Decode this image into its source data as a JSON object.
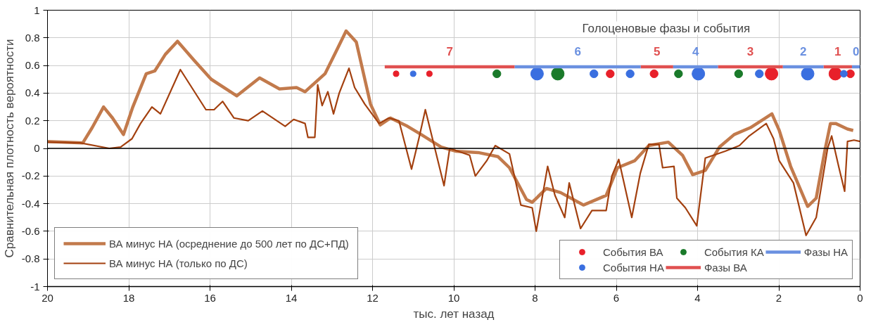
{
  "chart_data": {
    "type": "line",
    "ylabel": "Сравнительная плотность вероятности",
    "xlabel": "тыс. лет назад",
    "xlim": [
      20,
      0
    ],
    "xticks": [
      20,
      18,
      16,
      14,
      12,
      10,
      8,
      6,
      4,
      2,
      0
    ],
    "ylim": [
      -1,
      1
    ],
    "yticks": [
      -1,
      -0.8,
      -0.6,
      -0.4,
      -0.2,
      0,
      0.2,
      0.4,
      0.6,
      0.8,
      1
    ],
    "grid": true,
    "legend": "bottom",
    "annotations": [
      "Голоценовые фазы и события",
      "7",
      "6",
      "5",
      "4",
      "3",
      "2",
      "1",
      "0"
    ],
    "series": [
      {
        "name": "ВА минус НА (осреднение до 500 лет по ДС+ПД)",
        "color": "#c27a4c",
        "x": [
          20,
          19.13,
          18.9,
          18.62,
          18.4,
          18.13,
          17.9,
          17.57,
          17.36,
          17.1,
          16.8,
          16.4,
          15.97,
          15.34,
          14.78,
          14.29,
          13.87,
          13.66,
          13.17,
          12.9,
          12.65,
          12.4,
          12.05,
          11.81,
          11.56,
          11.14,
          10.8,
          10.31,
          9.96,
          9.4,
          8.91,
          8.63,
          8.21,
          8.07,
          7.72,
          7.37,
          6.81,
          6.25,
          5.97,
          5.55,
          5.2,
          4.72,
          4.37,
          4.12,
          3.81,
          3.46,
          3.1,
          2.7,
          2.17,
          1.99,
          1.71,
          1.29,
          1.08,
          0.87,
          0.73,
          0.6,
          0.31,
          0.17
        ],
        "values": [
          0.05,
          0.04,
          0.15,
          0.3,
          0.22,
          0.1,
          0.3,
          0.54,
          0.56,
          0.68,
          0.775,
          0.64,
          0.5,
          0.38,
          0.51,
          0.43,
          0.44,
          0.41,
          0.54,
          0.7,
          0.85,
          0.77,
          0.32,
          0.17,
          0.22,
          0.16,
          0.1,
          0.01,
          -0.02,
          -0.03,
          -0.06,
          -0.14,
          -0.37,
          -0.39,
          -0.29,
          -0.32,
          -0.41,
          -0.34,
          -0.14,
          -0.09,
          0.02,
          0.045,
          -0.05,
          -0.19,
          -0.16,
          0.01,
          0.1,
          0.15,
          0.25,
          0.13,
          -0.13,
          -0.42,
          -0.36,
          -0.02,
          0.18,
          0.18,
          0.14,
          0.13
        ]
      },
      {
        "name": "ВА минус НА (только по ДС)",
        "color": "#a3400f",
        "x": [
          20,
          19.2,
          18.48,
          18.2,
          17.92,
          17.71,
          17.43,
          17.22,
          16.73,
          16.1,
          15.9,
          15.69,
          15.41,
          15.06,
          14.71,
          14.15,
          13.94,
          13.66,
          13.59,
          13.42,
          13.35,
          13.24,
          13.1,
          12.96,
          12.82,
          12.58,
          12.44,
          12.19,
          11.84,
          11.6,
          11.35,
          11.04,
          10.86,
          10.7,
          10.24,
          10.1,
          9.61,
          9.47,
          9.19,
          8.98,
          8.63,
          8.35,
          8.07,
          7.97,
          7.69,
          7.51,
          7.27,
          7.16,
          6.88,
          6.6,
          6.25,
          6.11,
          5.94,
          5.62,
          5.41,
          5.2,
          4.95,
          4.86,
          4.58,
          4.51,
          4.3,
          4.02,
          3.81,
          3.32,
          2.97,
          2.73,
          2.31,
          2.13,
          1.99,
          1.64,
          1.33,
          1.08,
          0.8,
          0.7,
          0.52,
          0.38,
          0.31,
          0.15,
          0
        ],
        "values": [
          0.045,
          0.04,
          0.0,
          0.01,
          0.07,
          0.18,
          0.3,
          0.25,
          0.57,
          0.28,
          0.28,
          0.34,
          0.22,
          0.2,
          0.27,
          0.16,
          0.21,
          0.18,
          0.08,
          0.08,
          0.46,
          0.31,
          0.41,
          0.25,
          0.4,
          0.58,
          0.44,
          0.32,
          0.18,
          0.22,
          0.2,
          -0.15,
          0.07,
          0.28,
          -0.27,
          0.0,
          -0.05,
          -0.2,
          -0.09,
          0.02,
          -0.04,
          -0.41,
          -0.43,
          -0.6,
          -0.13,
          -0.34,
          -0.5,
          -0.25,
          -0.58,
          -0.45,
          -0.45,
          -0.2,
          -0.08,
          -0.5,
          -0.18,
          0.03,
          0.03,
          -0.14,
          -0.13,
          -0.36,
          -0.43,
          -0.56,
          -0.07,
          -0.02,
          0.02,
          0.09,
          0.18,
          0.07,
          -0.09,
          -0.25,
          -0.63,
          -0.5,
          0.0,
          0.09,
          -0.14,
          -0.31,
          0.05,
          0.06,
          0.05
        ]
      },
      {
        "name": "События ВА",
        "type": "bubble",
        "color": "#e8202a",
        "x": [
          11.42,
          10.6,
          6.15,
          5.07,
          2.18,
          0.61,
          0.24
        ],
        "values": [
          0.54,
          0.54,
          0.54,
          0.54,
          0.54,
          0.54,
          0.54
        ],
        "sizes": [
          0.2,
          0.2,
          0.4,
          0.4,
          1,
          1,
          0.4
        ]
      },
      {
        "name": "События НА",
        "type": "bubble",
        "color": "#3a6fe0",
        "x": [
          11.0,
          7.95,
          6.55,
          5.66,
          3.98,
          2.48,
          1.29,
          0.4
        ],
        "values": [
          0.54,
          0.54,
          0.54,
          0.54,
          0.54,
          0.54,
          0.54,
          0.54
        ],
        "sizes": [
          0.2,
          1,
          0.4,
          0.4,
          1,
          0.4,
          1,
          0.3
        ]
      },
      {
        "name": "События КА",
        "type": "bubble",
        "color": "#1a7a2a",
        "x": [
          8.94,
          7.44,
          4.47,
          2.99
        ],
        "values": [
          0.54,
          0.54,
          0.54,
          0.54
        ],
        "sizes": [
          0.4,
          1,
          0.4,
          0.4
        ]
      },
      {
        "name": "Фазы ВА",
        "color": "#e05050",
        "x": [
          11.7,
          8.5,
          7,
          5.4,
          4.6,
          4,
          3.5,
          1.9,
          1.4,
          0.9,
          0.2
        ],
        "values": [
          0.59,
          0.59,
          null,
          0.59,
          0.59,
          null,
          0.59,
          0.59,
          null,
          0.59,
          0.59
        ]
      },
      {
        "name": "Фазы НА",
        "color": "#6a90e0",
        "x": [
          8.5,
          5.4,
          5,
          4.6,
          3.5,
          2.7,
          1.9,
          0.9,
          0.5,
          0.2,
          0
        ],
        "values": [
          0.59,
          0.59,
          null,
          0.59,
          0.59,
          null,
          0.59,
          0.59,
          null,
          0.59,
          0.59
        ]
      }
    ]
  }
}
